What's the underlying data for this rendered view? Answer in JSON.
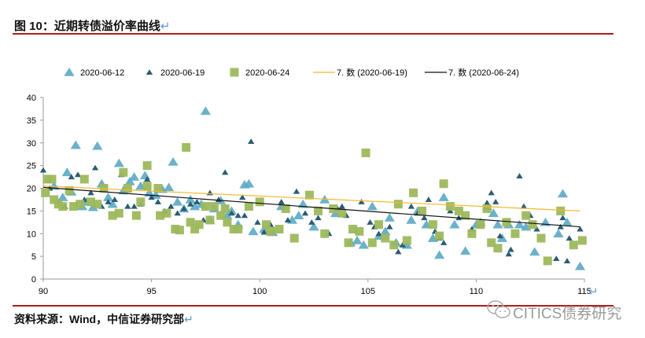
{
  "header": {
    "title": "图 10：近期转债溢价率曲线",
    "return_mark": "↵"
  },
  "footer": {
    "source": "资料来源：Wind，中信证券研究部",
    "return_mark": "↵"
  },
  "watermark": {
    "text": "CITICS债券研究",
    "icon": "wechat-icon"
  },
  "colors": {
    "s1": "#5BA8C4",
    "s2": "#2B5C74",
    "s3": "#9DB85C",
    "trend1": "#F5B82E",
    "trend2": "#111111",
    "rule": "#B01C1C"
  },
  "chart_data": {
    "type": "scatter",
    "title": "图 10：近期转债溢价率曲线",
    "xlabel": "",
    "ylabel": "",
    "xlim": [
      90,
      115
    ],
    "ylim": [
      0,
      40
    ],
    "xticks": [
      90,
      95,
      100,
      105,
      110,
      115
    ],
    "yticks": [
      0,
      5,
      10,
      15,
      20,
      25,
      30,
      35,
      40
    ],
    "grid": false,
    "legend_position": "top",
    "series": [
      {
        "name": "2020-06-12",
        "marker": "triangle",
        "points": [
          [
            90.5,
            20.5
          ],
          [
            90.9,
            18
          ],
          [
            91.1,
            23.5
          ],
          [
            91.3,
            19.2
          ],
          [
            91.5,
            29.5
          ],
          [
            91.8,
            16
          ],
          [
            92,
            17
          ],
          [
            92.3,
            15.8
          ],
          [
            92.5,
            29.3
          ],
          [
            92.7,
            21
          ],
          [
            93,
            18
          ],
          [
            93.2,
            16.5
          ],
          [
            93.5,
            25.5
          ],
          [
            93.7,
            19.5
          ],
          [
            94,
            21.5
          ],
          [
            94.2,
            22.5
          ],
          [
            94.5,
            20.5
          ],
          [
            94.7,
            22.8
          ],
          [
            94.9,
            19
          ],
          [
            95.2,
            18.5
          ],
          [
            95.5,
            19.8
          ],
          [
            95.8,
            20.2
          ],
          [
            96,
            25.8
          ],
          [
            96.2,
            17
          ],
          [
            96.5,
            15.5
          ],
          [
            96.8,
            17.5
          ],
          [
            97,
            16
          ],
          [
            97.3,
            16.5
          ],
          [
            97.5,
            37
          ],
          [
            97.7,
            13
          ],
          [
            97.9,
            15.5
          ],
          [
            98.2,
            17.3
          ],
          [
            98.5,
            14
          ],
          [
            98.7,
            15
          ],
          [
            99,
            12
          ],
          [
            99.3,
            20.8
          ],
          [
            99.5,
            21
          ],
          [
            99.7,
            10.5
          ],
          [
            100.2,
            11
          ],
          [
            100.6,
            10.3
          ],
          [
            101,
            16
          ],
          [
            101.5,
            13
          ],
          [
            101.8,
            14
          ],
          [
            102,
            16.5
          ],
          [
            102.5,
            11.5
          ],
          [
            103,
            17.5
          ],
          [
            103.5,
            14.5
          ],
          [
            104.2,
            8
          ],
          [
            104.5,
            8.5
          ],
          [
            104.8,
            7.5
          ],
          [
            105.2,
            16
          ],
          [
            105.5,
            9.5
          ],
          [
            105.8,
            10.5
          ],
          [
            106,
            13.5
          ],
          [
            106.3,
            8
          ],
          [
            106.8,
            7.5
          ],
          [
            107,
            13
          ],
          [
            107.3,
            15
          ],
          [
            107.7,
            12
          ],
          [
            108,
            9
          ],
          [
            108.3,
            5.3
          ],
          [
            108.5,
            18
          ],
          [
            109,
            12
          ],
          [
            109.5,
            6.2
          ],
          [
            110,
            12
          ],
          [
            110.2,
            12.5
          ],
          [
            110.5,
            16
          ],
          [
            110.8,
            14.5
          ],
          [
            111,
            12
          ],
          [
            111.2,
            9
          ],
          [
            111.5,
            12
          ],
          [
            112,
            12
          ],
          [
            112.3,
            11.5
          ],
          [
            112.7,
            6
          ],
          [
            113.2,
            12.5
          ],
          [
            113.8,
            10
          ],
          [
            114,
            18.8
          ],
          [
            114.2,
            12.5
          ],
          [
            114.8,
            2.8
          ]
        ]
      },
      {
        "name": "2020-06-19",
        "marker": "small-triangle",
        "points": [
          [
            90,
            24
          ],
          [
            90.3,
            20
          ],
          [
            90.7,
            17
          ],
          [
            91,
            16
          ],
          [
            91.3,
            22.5
          ],
          [
            91.6,
            23
          ],
          [
            91.9,
            17.5
          ],
          [
            92.2,
            19
          ],
          [
            92.4,
            24.5
          ],
          [
            92.7,
            16
          ],
          [
            93,
            17
          ],
          [
            93.3,
            17.5
          ],
          [
            93.6,
            23
          ],
          [
            93.9,
            16
          ],
          [
            94.2,
            16
          ],
          [
            94.5,
            16.5
          ],
          [
            94.8,
            22
          ],
          [
            95,
            18
          ],
          [
            95.3,
            17
          ],
          [
            95.6,
            15
          ],
          [
            95.9,
            16
          ],
          [
            96.2,
            14.5
          ],
          [
            96.5,
            15.5
          ],
          [
            96.8,
            16.5
          ],
          [
            97.1,
            17
          ],
          [
            97.4,
            13
          ],
          [
            97.7,
            19
          ],
          [
            98.1,
            17.5
          ],
          [
            98.4,
            23.5
          ],
          [
            98.7,
            14.5
          ],
          [
            99,
            14
          ],
          [
            99.2,
            18
          ],
          [
            99.3,
            14
          ],
          [
            99.6,
            30.3
          ],
          [
            99.9,
            12.5
          ],
          [
            100.2,
            10.3
          ],
          [
            100.5,
            12
          ],
          [
            101,
            17
          ],
          [
            101.3,
            13
          ],
          [
            101.7,
            19.3
          ],
          [
            102.1,
            14.5
          ],
          [
            102.4,
            12.5
          ],
          [
            102.7,
            13.5
          ],
          [
            103.2,
            10
          ],
          [
            103.6,
            15.5
          ],
          [
            103.8,
            16
          ],
          [
            104,
            14
          ],
          [
            104.7,
            17
          ],
          [
            105.1,
            12.5
          ],
          [
            105.3,
            11.5
          ],
          [
            105.5,
            10
          ],
          [
            106,
            11.5
          ],
          [
            106.4,
            6
          ],
          [
            106.6,
            7.5
          ],
          [
            107,
            16
          ],
          [
            107.3,
            14.5
          ],
          [
            107.6,
            13.5
          ],
          [
            107.8,
            17.5
          ],
          [
            108.1,
            10.5
          ],
          [
            108.3,
            9
          ],
          [
            108.5,
            8
          ],
          [
            108.8,
            15
          ],
          [
            109.2,
            13.5
          ],
          [
            109.8,
            11
          ],
          [
            110.5,
            16.8
          ],
          [
            110.7,
            19
          ],
          [
            110.9,
            17
          ],
          [
            111.1,
            9.5
          ],
          [
            111.5,
            5.5
          ],
          [
            111.6,
            6.5
          ],
          [
            112,
            22.7
          ],
          [
            112.2,
            16
          ],
          [
            112.5,
            14
          ],
          [
            112.8,
            11
          ],
          [
            113.7,
            4.5
          ],
          [
            113.9,
            11.5
          ],
          [
            114,
            13.5
          ],
          [
            114.2,
            4
          ],
          [
            114.3,
            9
          ],
          [
            114.8,
            11
          ]
        ]
      },
      {
        "name": "2020-06-24",
        "marker": "square",
        "points": [
          [
            90.1,
            19
          ],
          [
            90.2,
            22
          ],
          [
            90.4,
            22
          ],
          [
            90.5,
            17.5
          ],
          [
            90.7,
            16.5
          ],
          [
            90.9,
            16
          ],
          [
            91.2,
            19.5
          ],
          [
            91.4,
            16
          ],
          [
            91.7,
            16.5
          ],
          [
            91.9,
            22
          ],
          [
            92.2,
            17
          ],
          [
            92.5,
            16.5
          ],
          [
            92.8,
            20
          ],
          [
            93.2,
            14
          ],
          [
            93.5,
            14.5
          ],
          [
            93.7,
            23.5
          ],
          [
            93.9,
            20
          ],
          [
            94.3,
            14
          ],
          [
            94.5,
            17
          ],
          [
            94.8,
            25
          ],
          [
            94.8,
            20.5
          ],
          [
            95.3,
            20
          ],
          [
            95.4,
            14
          ],
          [
            95.7,
            14.5
          ],
          [
            96.1,
            11
          ],
          [
            96.3,
            10.8
          ],
          [
            96.6,
            29
          ],
          [
            96.8,
            12.5
          ],
          [
            97,
            11
          ],
          [
            97.2,
            12
          ],
          [
            97.5,
            16
          ],
          [
            97.7,
            13
          ],
          [
            97.9,
            16
          ],
          [
            98.2,
            14
          ],
          [
            98.4,
            15.5
          ],
          [
            98.5,
            12.5
          ],
          [
            98.8,
            11
          ],
          [
            99,
            11
          ],
          [
            99.5,
            16
          ],
          [
            100,
            17
          ],
          [
            100.3,
            12
          ],
          [
            100.5,
            10.5
          ],
          [
            100.9,
            11
          ],
          [
            101.2,
            15.5
          ],
          [
            101.6,
            9
          ],
          [
            102.3,
            18.5
          ],
          [
            102.7,
            15
          ],
          [
            103,
            10
          ],
          [
            103.4,
            15.5
          ],
          [
            103.8,
            14.5
          ],
          [
            104.1,
            8
          ],
          [
            104.3,
            11
          ],
          [
            104.6,
            10.5
          ],
          [
            104.9,
            27.8
          ],
          [
            105.2,
            8
          ],
          [
            105.5,
            12
          ],
          [
            105.8,
            9
          ],
          [
            106.2,
            7.5
          ],
          [
            106.4,
            16.5
          ],
          [
            106.8,
            8.5
          ],
          [
            107.1,
            19
          ],
          [
            107.5,
            15
          ],
          [
            108,
            12
          ],
          [
            108.3,
            9.5
          ],
          [
            108.5,
            21
          ],
          [
            108.8,
            16
          ],
          [
            109.2,
            15
          ],
          [
            109.5,
            14
          ],
          [
            109.8,
            10
          ],
          [
            110.2,
            12
          ],
          [
            110.5,
            15.5
          ],
          [
            110.7,
            8
          ],
          [
            111,
            6.8
          ],
          [
            111.4,
            12.5
          ],
          [
            111.8,
            10
          ],
          [
            112.3,
            14
          ],
          [
            112.6,
            12
          ],
          [
            113,
            9
          ],
          [
            113.3,
            4
          ],
          [
            113.9,
            15
          ],
          [
            114.5,
            7.5
          ],
          [
            114.9,
            8.5
          ]
        ]
      }
    ],
    "trendlines": [
      {
        "name": "7. 数 (2020-06-19)",
        "x": [
          90,
          114.8
        ],
        "y": [
          20.5,
          15
        ]
      },
      {
        "name": "7. 数 (2020-06-24)",
        "x": [
          90,
          114.8
        ],
        "y": [
          20.2,
          11.5
        ]
      }
    ],
    "legend": [
      "2020-06-12",
      "2020-06-19",
      "2020-06-24",
      "7. 数 (2020-06-19)",
      "7. 数 (2020-06-24)"
    ]
  }
}
